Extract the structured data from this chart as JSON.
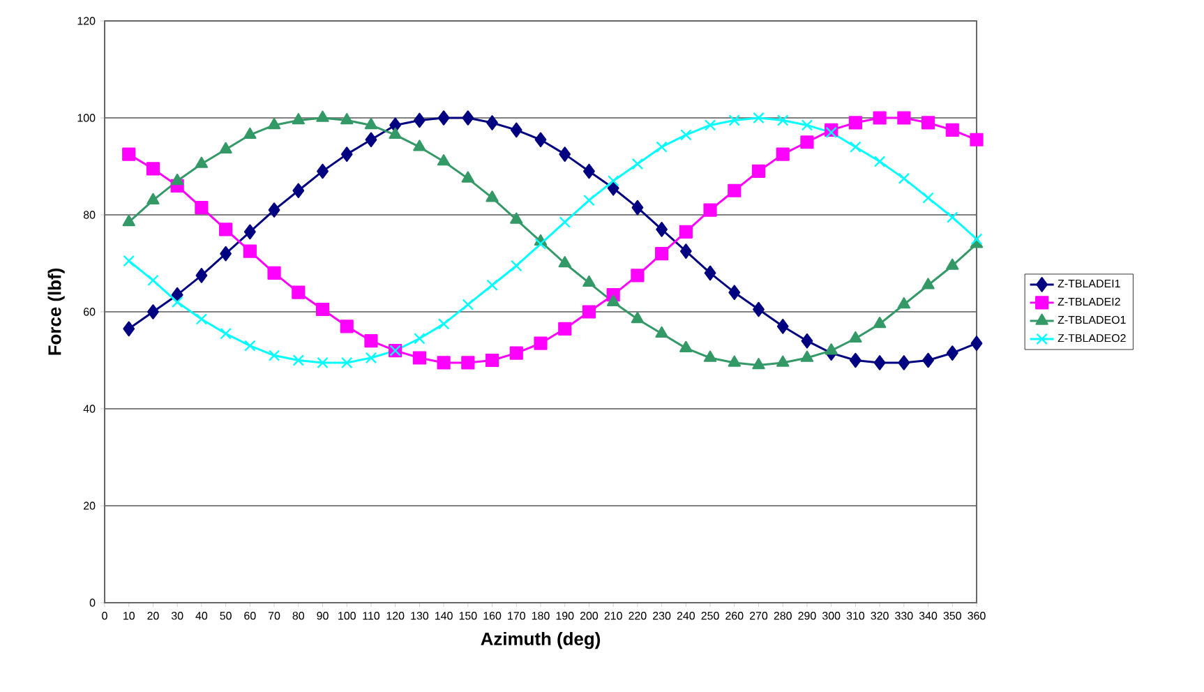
{
  "chart_data": {
    "type": "line",
    "xlabel": "Azimuth (deg)",
    "ylabel": "Force (lbf)",
    "x": [
      10,
      20,
      30,
      40,
      50,
      60,
      70,
      80,
      90,
      100,
      110,
      120,
      130,
      140,
      150,
      160,
      170,
      180,
      190,
      200,
      210,
      220,
      230,
      240,
      250,
      260,
      270,
      280,
      290,
      300,
      310,
      320,
      330,
      340,
      350,
      360
    ],
    "series": [
      {
        "name": "Z-TBLADEI1",
        "color": "#000080",
        "marker": "diamond",
        "values": [
          56.5,
          60,
          63.5,
          67.5,
          72,
          76.5,
          81,
          85,
          89,
          92.5,
          95.5,
          98.5,
          99.5,
          100,
          100,
          99,
          97.5,
          95.5,
          92.5,
          89,
          85.5,
          81.5,
          77,
          72.5,
          68,
          64,
          60.5,
          57,
          54,
          51.5,
          50,
          49.5,
          49.5,
          50,
          51.5,
          53.5
        ]
      },
      {
        "name": "Z-TBLADEI2",
        "color": "#ff00ff",
        "marker": "square",
        "values": [
          92.5,
          89.5,
          86,
          81.5,
          77,
          72.5,
          68,
          64,
          60.5,
          57,
          54,
          52,
          50.5,
          49.5,
          49.5,
          50,
          51.5,
          53.5,
          56.5,
          60,
          63.5,
          67.5,
          72,
          76.5,
          81,
          85,
          89,
          92.5,
          95,
          97.5,
          99,
          100,
          100,
          99,
          97.5,
          95.5
        ]
      },
      {
        "name": "Z-TBLADEO1",
        "color": "#339966",
        "marker": "triangle",
        "values": [
          78.5,
          83,
          87,
          90.5,
          93.5,
          96.5,
          98.5,
          99.5,
          100,
          99.5,
          98.5,
          96.5,
          94,
          91,
          87.5,
          83.5,
          79,
          74.5,
          70,
          66,
          62,
          58.5,
          55.5,
          52.5,
          50.5,
          49.5,
          49,
          49.5,
          50.5,
          52,
          54.5,
          57.5,
          61.5,
          65.5,
          69.5,
          74
        ]
      },
      {
        "name": "Z-TBLADEO2",
        "color": "#00ffff",
        "marker": "cross",
        "values": [
          70.5,
          66.5,
          62,
          58.5,
          55.5,
          53,
          51,
          50,
          49.5,
          49.5,
          50.5,
          52,
          54.5,
          57.5,
          61.5,
          65.5,
          69.5,
          74,
          78.5,
          83,
          87,
          90.5,
          94,
          96.5,
          98.5,
          99.5,
          100,
          99.5,
          98.5,
          97,
          94,
          91,
          87.5,
          83.5,
          79.5,
          75
        ]
      }
    ],
    "xlim": [
      0,
      360
    ],
    "xticks": [
      0,
      10,
      20,
      30,
      40,
      50,
      60,
      70,
      80,
      90,
      100,
      110,
      120,
      130,
      140,
      150,
      160,
      170,
      180,
      190,
      200,
      210,
      220,
      230,
      240,
      250,
      260,
      270,
      280,
      290,
      300,
      310,
      320,
      330,
      340,
      350,
      360
    ],
    "ylim": [
      0,
      120
    ],
    "yticks": [
      0,
      20,
      40,
      60,
      80,
      100,
      120
    ],
    "grid": "y",
    "legend": "right",
    "line_style": "solid"
  }
}
